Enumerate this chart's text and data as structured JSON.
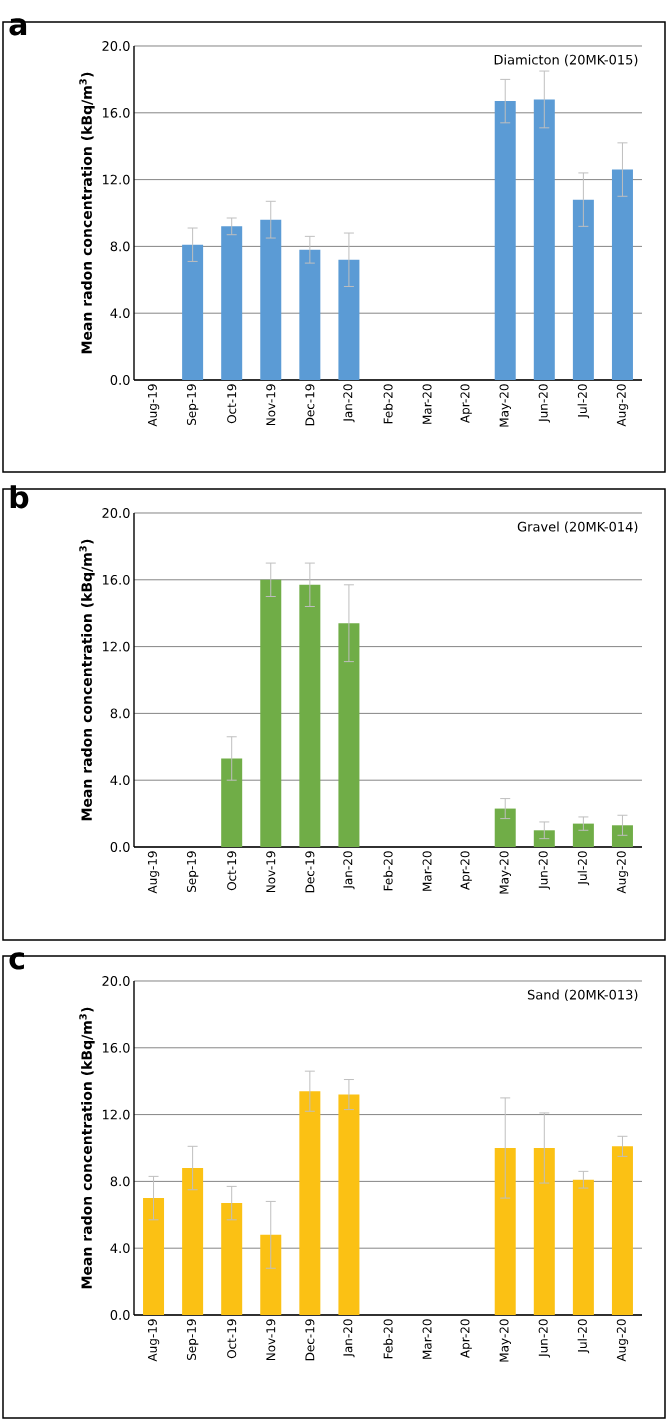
{
  "chart_data": [
    {
      "type": "bar",
      "title": "a",
      "subtitle": "Diamicton (20MK-015)",
      "ylabel": "Mean radon concentration (kBq/m$^{3}$)",
      "categories": [
        "Aug-19",
        "Sep-19",
        "Oct-19",
        "Nov-19",
        "Dec-19",
        "Jan-20",
        "Feb-20",
        "Mar-20",
        "Apr-20",
        "May-20",
        "Jun-20",
        "Jul-20",
        "Aug-20"
      ],
      "values": [
        null,
        8.1,
        9.2,
        9.6,
        7.8,
        7.2,
        null,
        null,
        null,
        16.7,
        16.8,
        10.8,
        12.6
      ],
      "errors": [
        null,
        1.0,
        0.5,
        1.1,
        0.8,
        1.6,
        null,
        null,
        null,
        1.3,
        1.7,
        1.6,
        1.6
      ],
      "color": "#5b9bd5",
      "ylim": [
        0,
        20
      ],
      "yticks": [
        {
          "value": 0,
          "label": "0.0"
        },
        {
          "value": 4,
          "label": "4.0"
        },
        {
          "value": 8,
          "label": "8.0"
        },
        {
          "value": 12,
          "label": "12.0"
        },
        {
          "value": 16,
          "label": "16.0"
        },
        {
          "value": 20,
          "label": "20.0"
        }
      ],
      "grid": "y"
    },
    {
      "type": "bar",
      "title": "b",
      "subtitle": "Gravel (20MK-014)",
      "ylabel": "Mean radon concentration (kBq/m$^{3}$)",
      "categories": [
        "Aug-19",
        "Sep-19",
        "Oct-19",
        "Nov-19",
        "Dec-19",
        "Jan-20",
        "Feb-20",
        "Mar-20",
        "Apr-20",
        "May-20",
        "Jun-20",
        "Jul-20",
        "Aug-20"
      ],
      "values": [
        null,
        null,
        5.3,
        16.0,
        15.7,
        13.4,
        null,
        null,
        null,
        2.3,
        1.0,
        1.4,
        1.3
      ],
      "errors": [
        null,
        null,
        1.3,
        1.0,
        1.3,
        2.3,
        null,
        null,
        null,
        0.6,
        0.5,
        0.4,
        0.6
      ],
      "color": "#70ad47",
      "ylim": [
        0,
        20
      ],
      "yticks": [
        {
          "value": 0,
          "label": "0.0"
        },
        {
          "value": 4,
          "label": "4.0"
        },
        {
          "value": 8,
          "label": "8.0"
        },
        {
          "value": 12,
          "label": "12.0"
        },
        {
          "value": 16,
          "label": "16.0"
        },
        {
          "value": 20,
          "label": "20.0"
        }
      ],
      "grid": "y"
    },
    {
      "type": "bar",
      "title": "c",
      "subtitle": "Sand (20MK-013)",
      "ylabel": "Mean radon concentration (kBq/m$^{3}$)",
      "categories": [
        "Aug-19",
        "Sep-19",
        "Oct-19",
        "Nov-19",
        "Dec-19",
        "Jan-20",
        "Feb-20",
        "Mar-20",
        "Apr-20",
        "May-20",
        "Jun-20",
        "Jul-20",
        "Aug-20"
      ],
      "values": [
        7.0,
        8.8,
        6.7,
        4.8,
        13.4,
        13.2,
        null,
        null,
        null,
        10.0,
        10.0,
        8.1,
        10.1
      ],
      "errors": [
        1.3,
        1.3,
        1.0,
        2.0,
        1.2,
        0.9,
        null,
        null,
        null,
        3.0,
        2.1,
        0.5,
        0.6
      ],
      "color": "#fbc114",
      "ylim": [
        0,
        20
      ],
      "yticks": [
        {
          "value": 0,
          "label": "0.0"
        },
        {
          "value": 4,
          "label": "4.0"
        },
        {
          "value": 8,
          "label": "8.0"
        },
        {
          "value": 12,
          "label": "12.0"
        },
        {
          "value": 16,
          "label": "16.0"
        },
        {
          "value": 20,
          "label": "20.0"
        }
      ],
      "grid": "y"
    }
  ]
}
